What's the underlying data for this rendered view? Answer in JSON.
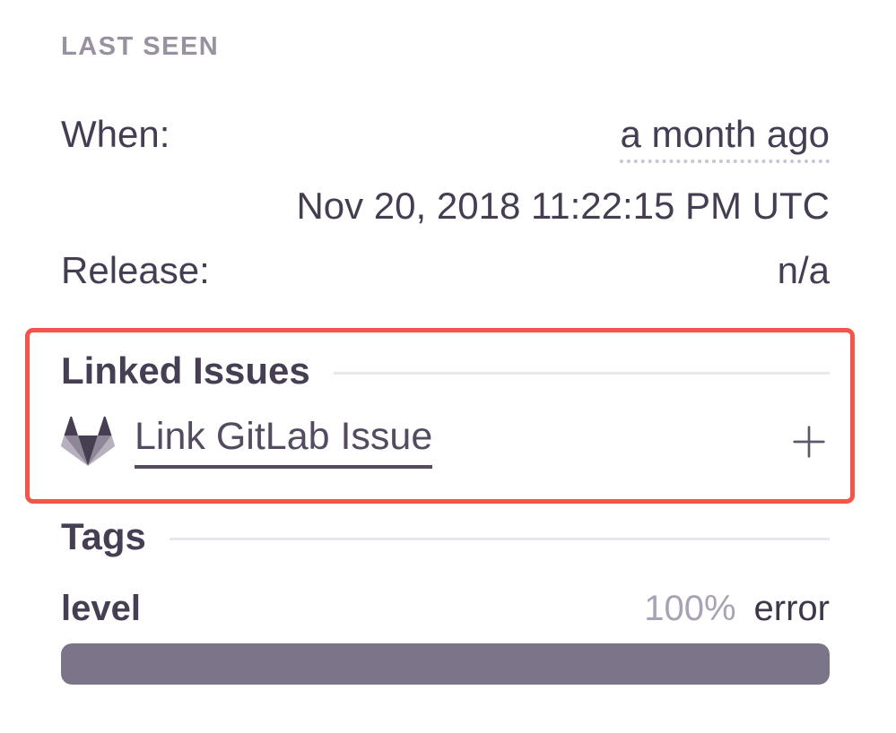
{
  "last_seen": {
    "title": "LAST SEEN",
    "when_label": "When:",
    "when_relative": "a month ago",
    "when_absolute": "Nov 20, 2018 11:22:15 PM UTC",
    "release_label": "Release:",
    "release_value": "n/a"
  },
  "linked_issues": {
    "title": "Linked Issues",
    "link_label": "Link GitLab Issue",
    "highlighted": true
  },
  "tags": {
    "title": "Tags",
    "items": [
      {
        "key": "level",
        "percent": "100%",
        "value": "error",
        "bar_width": "100%"
      }
    ]
  },
  "icons": {
    "gitlab": "gitlab-tanuki-icon",
    "add": "plus-icon"
  },
  "colors": {
    "highlight_border": "#f5544a",
    "text_dark": "#453d51",
    "text_muted": "#98919f",
    "percent_muted": "#a9a2b4",
    "bar_fill": "#7c7488",
    "divider": "#e9e6ee",
    "gitlab_dark": "#473e52",
    "gitlab_medium": "#8e8798",
    "gitlab_light": "#b6b0bf"
  }
}
